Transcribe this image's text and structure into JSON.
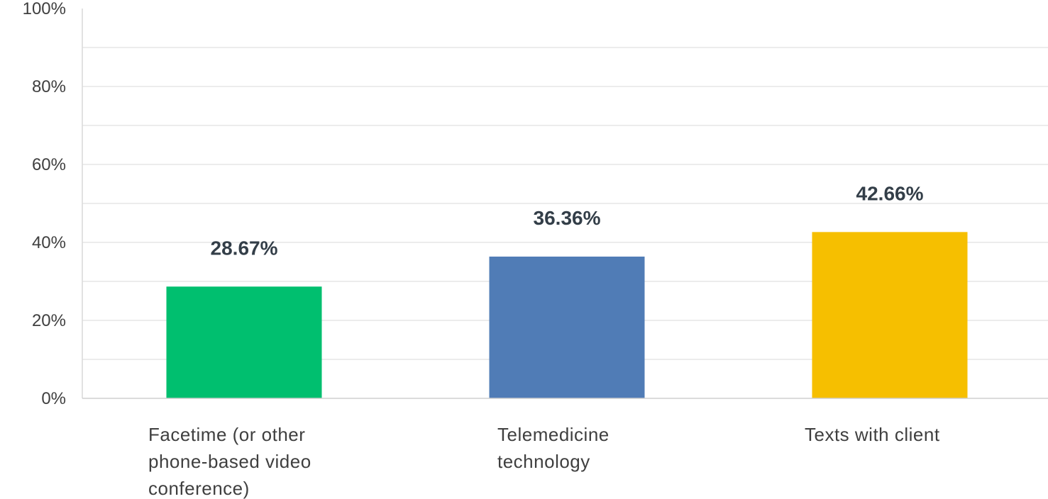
{
  "chart_data": {
    "type": "bar",
    "categories": [
      [
        "Facetime (or other",
        "phone-based video",
        "conference)"
      ],
      [
        "Telemedicine",
        "technology"
      ],
      [
        "Texts with client"
      ]
    ],
    "values": [
      28.67,
      36.36,
      42.66
    ],
    "value_labels": [
      "28.67%",
      "36.36%",
      "42.66%"
    ],
    "colors": [
      "#00bf6f",
      "#507cb6",
      "#f6bf00"
    ],
    "ylim": [
      0,
      100
    ],
    "yticks": [
      0,
      20,
      40,
      60,
      80,
      100
    ],
    "ytick_labels": [
      "0%",
      "20%",
      "40%",
      "60%",
      "80%",
      "100%"
    ],
    "grid": true,
    "legend": "none",
    "title": "",
    "xlabel": "",
    "ylabel": ""
  }
}
